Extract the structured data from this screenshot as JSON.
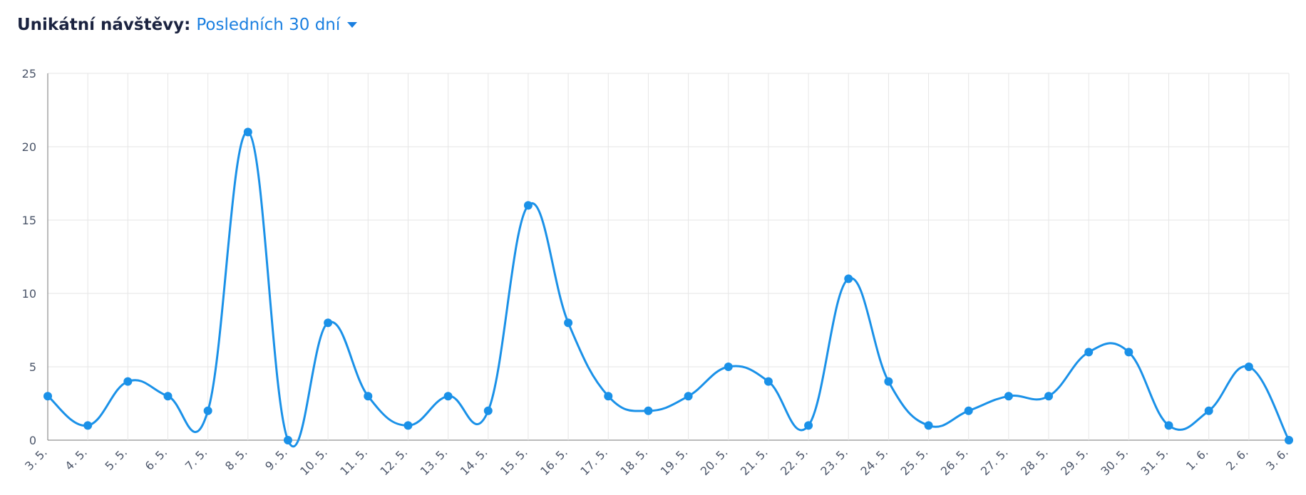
{
  "chart_data": {
    "type": "line",
    "title": "Unikátní návštěvy:",
    "period_selector": "Posledních 30 dní",
    "categories": [
      "3. 5.",
      "4. 5.",
      "5. 5.",
      "6. 5.",
      "7. 5.",
      "8. 5.",
      "9. 5.",
      "10. 5.",
      "11. 5.",
      "12. 5.",
      "13. 5.",
      "14. 5.",
      "15. 5.",
      "16. 5.",
      "17. 5.",
      "18. 5.",
      "19. 5.",
      "20. 5.",
      "21. 5.",
      "22. 5.",
      "23. 5.",
      "24. 5.",
      "25. 5.",
      "26. 5.",
      "27. 5.",
      "28. 5.",
      "29. 5.",
      "30. 5.",
      "31. 5.",
      "1. 6.",
      "2. 6.",
      "3. 6."
    ],
    "values": [
      3,
      1,
      4,
      3,
      2,
      21,
      0,
      8,
      3,
      1,
      3,
      2,
      16,
      8,
      3,
      2,
      3,
      5,
      4,
      1,
      11,
      4,
      1,
      2,
      3,
      3,
      6,
      6,
      1,
      2,
      5,
      0
    ],
    "color": "#1a91e8",
    "ylim": [
      0,
      25
    ],
    "yticks": [
      0,
      5,
      10,
      15,
      20,
      25
    ],
    "grid": true
  }
}
